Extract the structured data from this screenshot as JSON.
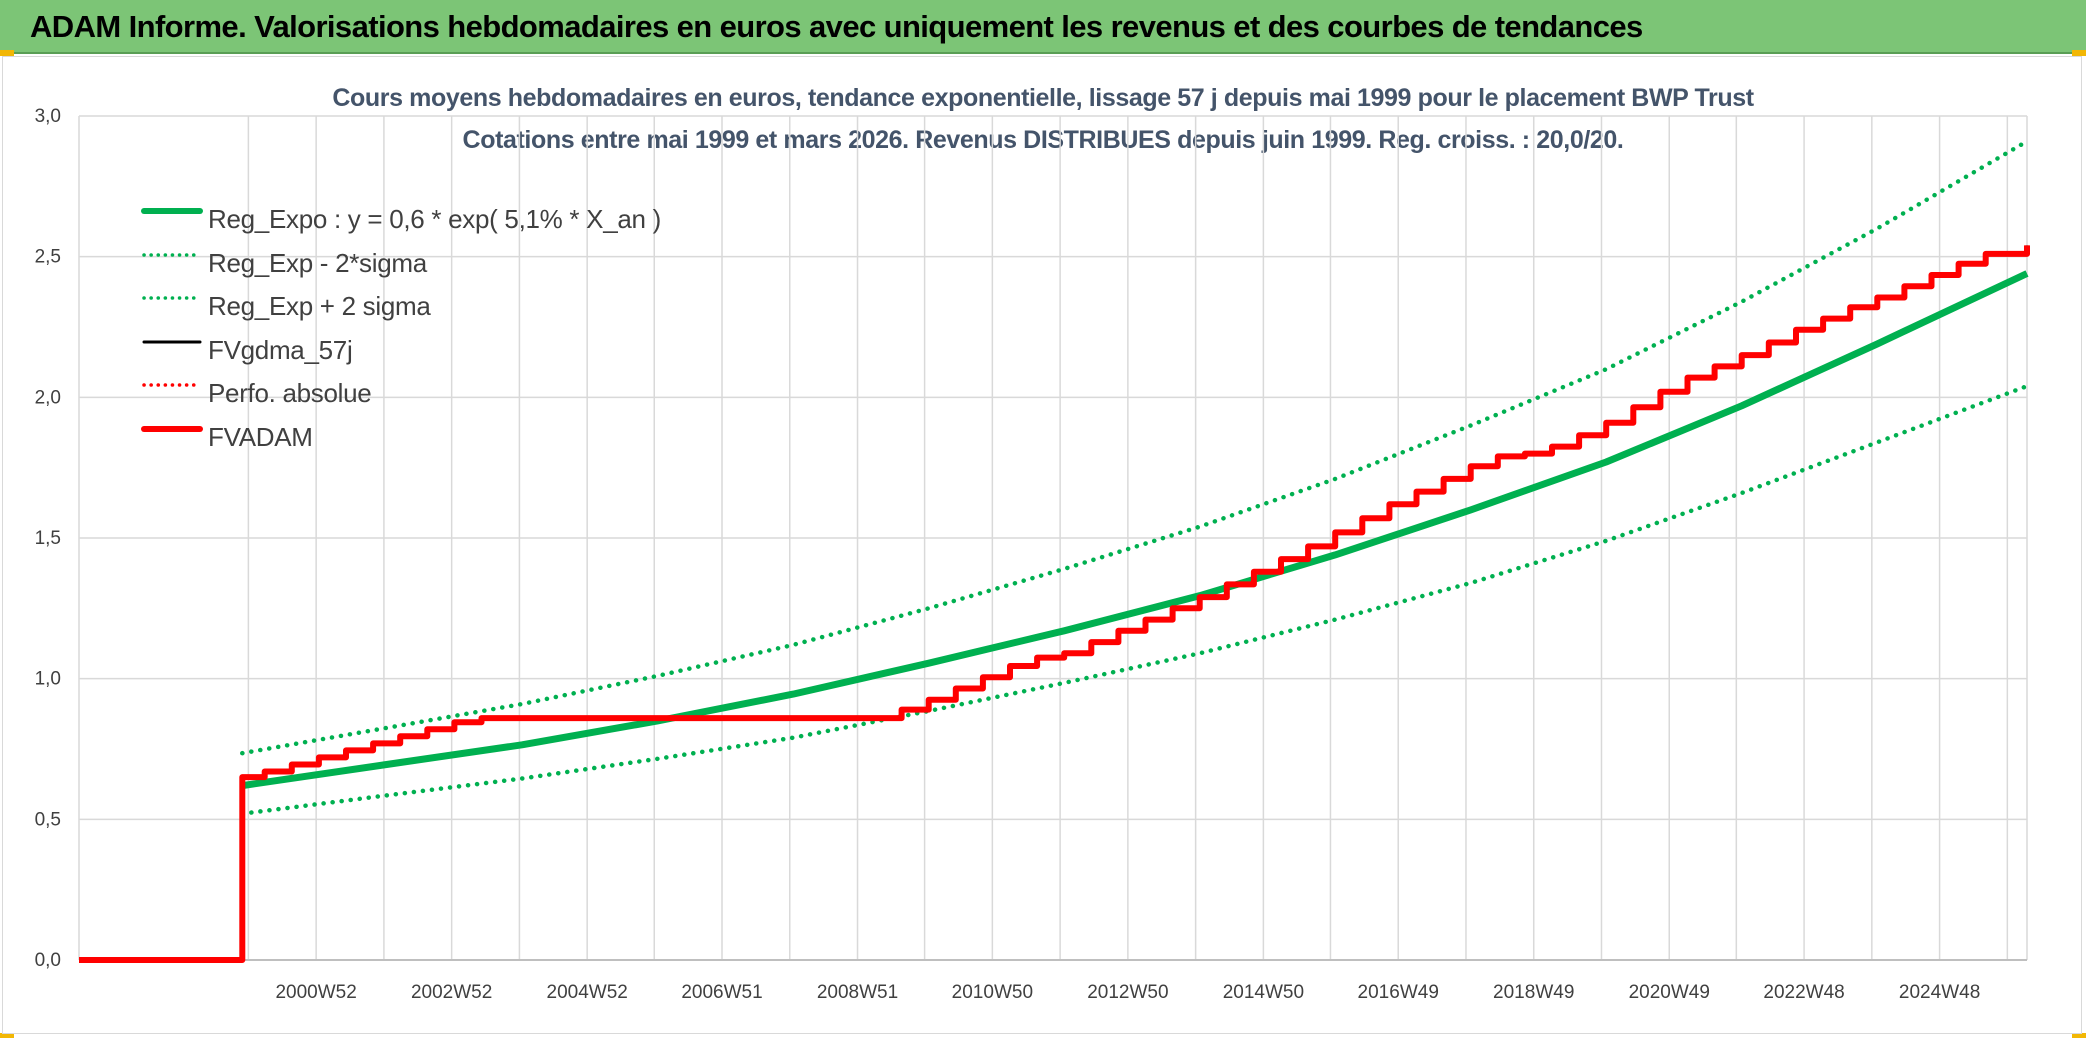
{
  "banner": {
    "title": "ADAM Informe. Valorisations hebdomadaires en euros avec uniquement les revenus et des courbes de tendances",
    "background": "#7cc576"
  },
  "chart_data": {
    "type": "line",
    "title": "Cours moyens hebdomadaires en euros, tendance exponentielle, lissage 57 j depuis mai 1999 pour le placement BWP Trust",
    "subtitle": "Cotations entre mai 1999 et mars 2026. Revenus DISTRIBUES depuis juin 1999. Reg. croiss. : 20,0/20.",
    "xlabel": "",
    "ylabel": "",
    "x_range": [
      1997.46,
      2026.21
    ],
    "ylim": [
      0,
      3
    ],
    "y_ticks": [
      0,
      0.5,
      1,
      1.5,
      2,
      2.5,
      3
    ],
    "y_tick_labels": [
      "0,0",
      "0,5",
      "1,0",
      "1,5",
      "2,0",
      "2,5",
      "3,0"
    ],
    "x_ticks": [
      {
        "x": 2000.96,
        "label": "2000W52"
      },
      {
        "x": 2002.96,
        "label": "2002W52"
      },
      {
        "x": 2004.96,
        "label": "2004W52"
      },
      {
        "x": 2006.95,
        "label": "2006W51"
      },
      {
        "x": 2008.95,
        "label": "2008W51"
      },
      {
        "x": 2010.94,
        "label": "2010W50"
      },
      {
        "x": 2012.94,
        "label": "2012W50"
      },
      {
        "x": 2014.94,
        "label": "2014W50"
      },
      {
        "x": 2016.93,
        "label": "2016W49"
      },
      {
        "x": 2018.93,
        "label": "2018W49"
      },
      {
        "x": 2020.93,
        "label": "2020W49"
      },
      {
        "x": 2022.92,
        "label": "2022W48"
      },
      {
        "x": 2024.92,
        "label": "2024W48"
      }
    ],
    "grid": true,
    "legend_position": "top-left",
    "series": [
      {
        "name": "Reg_Expo : y = 0,6 * exp( 5,1% *  X_an )",
        "color": "#00b050",
        "style": "solid",
        "width": 7,
        "x": [
          1999.87,
          2002,
          2004,
          2006,
          2008,
          2010,
          2012,
          2014,
          2016,
          2018,
          2020,
          2022,
          2024,
          2026.21
        ],
        "y": [
          0.62,
          0.695,
          0.765,
          0.85,
          0.945,
          1.055,
          1.17,
          1.295,
          1.44,
          1.6,
          1.77,
          1.97,
          2.19,
          2.44
        ]
      },
      {
        "name": "Reg_Exp - 2*sigma",
        "color": "#00b050",
        "style": "dotted",
        "width": 4,
        "x": [
          1999.87,
          2002,
          2004,
          2006,
          2008,
          2010,
          2012,
          2014,
          2016,
          2018,
          2020,
          2022,
          2024,
          2026.21
        ],
        "y": [
          0.52,
          0.585,
          0.645,
          0.715,
          0.79,
          0.885,
          0.985,
          1.09,
          1.21,
          1.34,
          1.49,
          1.66,
          1.84,
          2.04
        ]
      },
      {
        "name": "Reg_Exp + 2 sigma",
        "color": "#00b050",
        "style": "dotted",
        "width": 4,
        "x": [
          1999.87,
          2002,
          2004,
          2006,
          2008,
          2010,
          2012,
          2014,
          2016,
          2018,
          2020,
          2022,
          2024,
          2026.21
        ],
        "y": [
          0.735,
          0.825,
          0.91,
          1.01,
          1.12,
          1.25,
          1.39,
          1.54,
          1.71,
          1.9,
          2.1,
          2.34,
          2.6,
          2.91
        ]
      },
      {
        "name": "FVgdma_57j",
        "color": "#000000",
        "style": "solid",
        "width": 3,
        "x": [
          1997.46,
          1999.86,
          1999.87,
          2000.2,
          2000.6,
          2001,
          2001.4,
          2001.8,
          2002.2,
          2002.6,
          2003,
          2003.4,
          2004,
          2006,
          2009.05,
          2009.6,
          2010,
          2010.4,
          2010.8,
          2011.2,
          2011.6,
          2012,
          2012.4,
          2012.8,
          2013.2,
          2013.6,
          2014,
          2014.4,
          2014.8,
          2015.2,
          2015.6,
          2016,
          2016.4,
          2016.8,
          2017.2,
          2017.6,
          2018,
          2018.4,
          2018.8,
          2019.2,
          2019.6,
          2020,
          2020.4,
          2020.8,
          2021.2,
          2021.6,
          2022,
          2022.4,
          2022.8,
          2023.2,
          2023.6,
          2024,
          2024.4,
          2024.8,
          2025.2,
          2025.6,
          2026.21
        ],
        "y": [
          0,
          0,
          0.65,
          0.67,
          0.695,
          0.72,
          0.745,
          0.77,
          0.795,
          0.82,
          0.845,
          0.86,
          0.86,
          0.86,
          0.86,
          0.89,
          0.925,
          0.965,
          1.005,
          1.045,
          1.075,
          1.09,
          1.13,
          1.17,
          1.21,
          1.25,
          1.29,
          1.335,
          1.38,
          1.425,
          1.47,
          1.52,
          1.57,
          1.62,
          1.665,
          1.71,
          1.755,
          1.79,
          1.8,
          1.825,
          1.865,
          1.91,
          1.965,
          2.02,
          2.07,
          2.11,
          2.15,
          2.195,
          2.24,
          2.28,
          2.32,
          2.355,
          2.395,
          2.435,
          2.475,
          2.51,
          2.54
        ]
      },
      {
        "name": "Perfo. absolue",
        "color": "#ff0000",
        "style": "dotted",
        "width": 3,
        "x": [],
        "y": []
      },
      {
        "name": "FVADAM",
        "color": "#ff0000",
        "style": "solid",
        "width": 6,
        "x": [
          1997.46,
          1999.86,
          1999.87,
          2000.2,
          2000.6,
          2001,
          2001.4,
          2001.8,
          2002.2,
          2002.6,
          2003,
          2003.4,
          2004,
          2006,
          2009.05,
          2009.6,
          2010,
          2010.4,
          2010.8,
          2011.2,
          2011.6,
          2012,
          2012.4,
          2012.8,
          2013.2,
          2013.6,
          2014,
          2014.4,
          2014.8,
          2015.2,
          2015.6,
          2016,
          2016.4,
          2016.8,
          2017.2,
          2017.6,
          2018,
          2018.4,
          2018.8,
          2019.2,
          2019.6,
          2020,
          2020.4,
          2020.8,
          2021.2,
          2021.6,
          2022,
          2022.4,
          2022.8,
          2023.2,
          2023.6,
          2024,
          2024.4,
          2024.8,
          2025.2,
          2025.6,
          2026.21
        ],
        "y": [
          0,
          0,
          0.65,
          0.67,
          0.695,
          0.72,
          0.745,
          0.77,
          0.795,
          0.82,
          0.845,
          0.86,
          0.86,
          0.86,
          0.86,
          0.89,
          0.925,
          0.965,
          1.005,
          1.045,
          1.075,
          1.09,
          1.13,
          1.17,
          1.21,
          1.25,
          1.29,
          1.335,
          1.38,
          1.425,
          1.47,
          1.52,
          1.57,
          1.62,
          1.665,
          1.71,
          1.755,
          1.79,
          1.8,
          1.825,
          1.865,
          1.91,
          1.965,
          2.02,
          2.07,
          2.11,
          2.15,
          2.195,
          2.24,
          2.28,
          2.32,
          2.355,
          2.395,
          2.435,
          2.475,
          2.51,
          2.54
        ]
      }
    ]
  }
}
